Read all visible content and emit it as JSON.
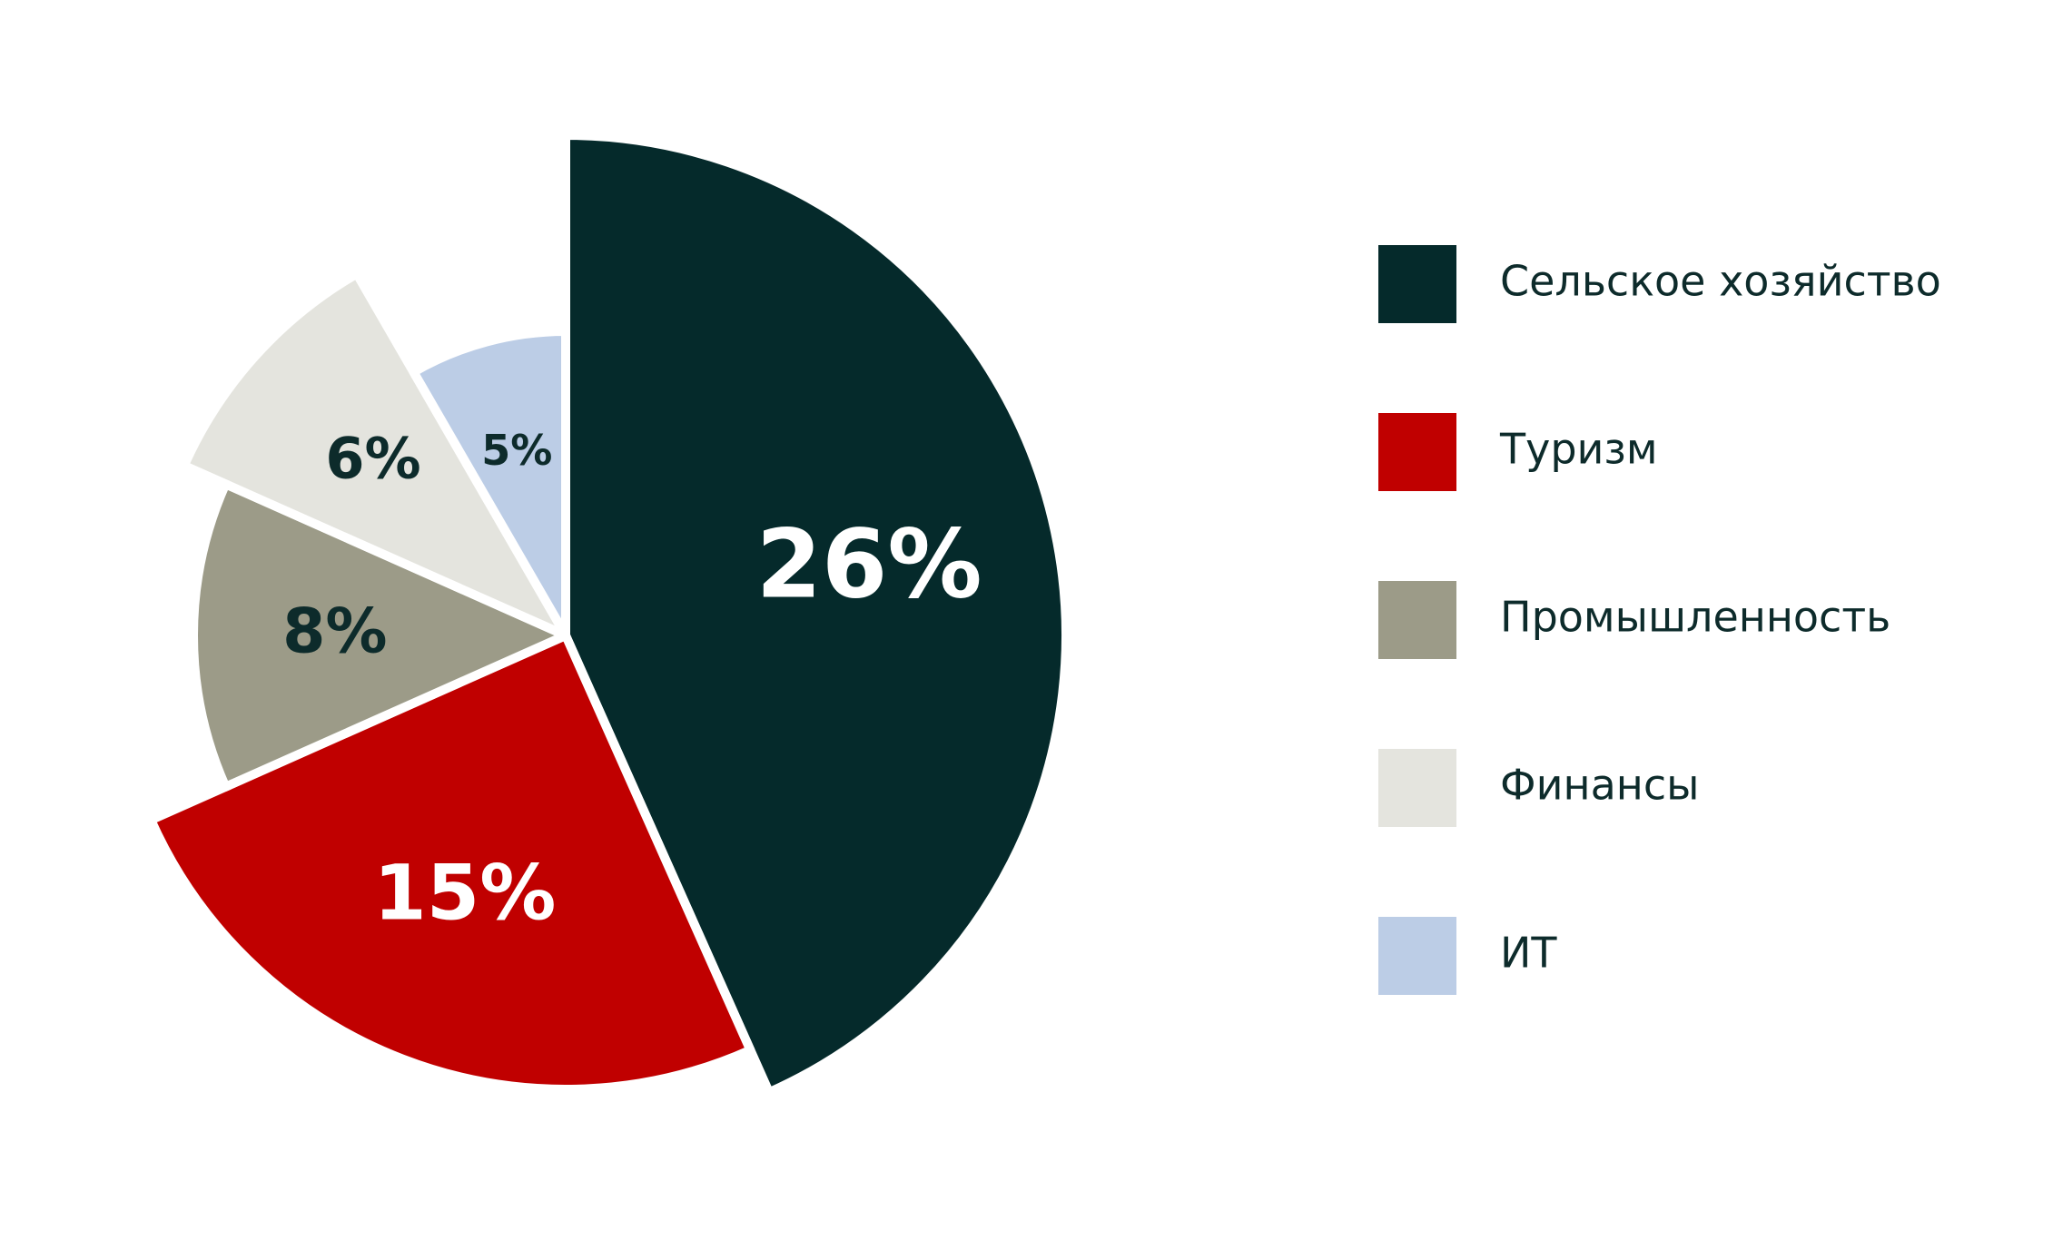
{
  "chart_data": {
    "type": "pie",
    "categories": [
      "Сельское хозяйство",
      "Туризм",
      "Промышленность",
      "Финансы",
      "ИТ"
    ],
    "values": [
      26,
      15,
      8,
      6,
      5
    ],
    "value_labels": [
      "26%",
      "15%",
      "8%",
      "6%",
      "5%"
    ],
    "colors": [
      "#052a2b",
      "#c00000",
      "#9c9b88",
      "#e4e4de",
      "#bccde6"
    ],
    "legend": "right"
  }
}
